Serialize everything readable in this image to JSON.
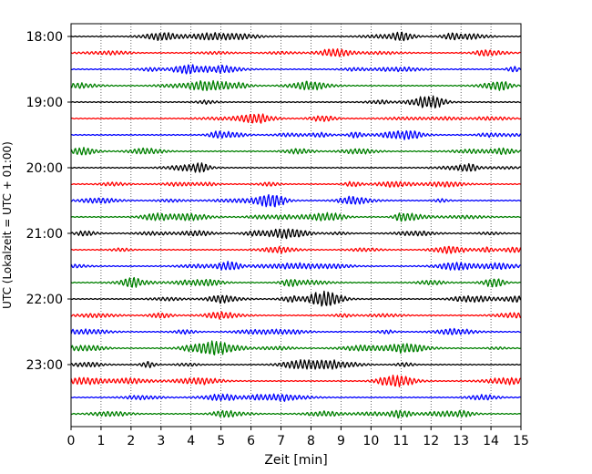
{
  "chart_data": {
    "type": "line",
    "title": "",
    "xlabel": "Zeit  [min]",
    "ylabel": "UTC (Lokalzeit = UTC + 01:00)",
    "xlim": [
      0,
      15
    ],
    "x_ticks": [
      "0",
      "1",
      "2",
      "3",
      "4",
      "5",
      "6",
      "7",
      "8",
      "9",
      "10",
      "11",
      "12",
      "13",
      "14",
      "15"
    ],
    "y_ticks": [
      "18:00",
      "19:00",
      "20:00",
      "21:00",
      "22:00",
      "23:00"
    ],
    "grid": "vertical dotted lines at each minute",
    "trace_interval_minutes": 15,
    "trace_start": "18:00",
    "trace_count": 24,
    "trace_colors": [
      "#000000",
      "#ff0000",
      "#0000ff",
      "#008000"
    ]
  }
}
